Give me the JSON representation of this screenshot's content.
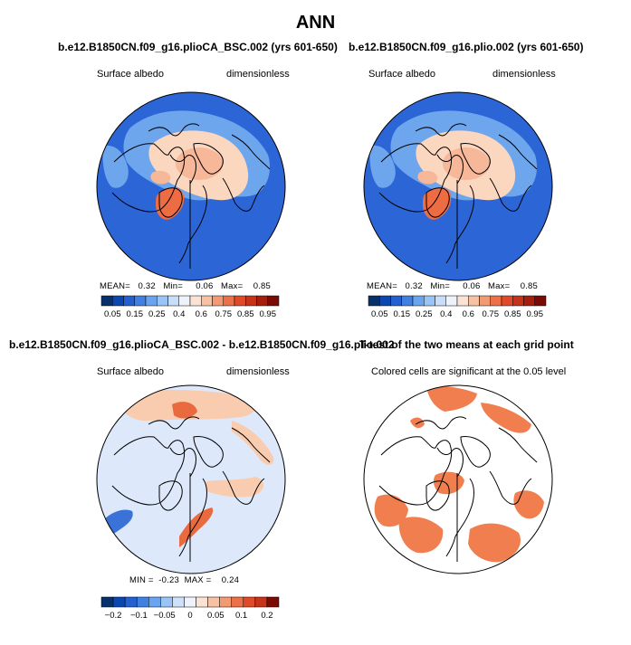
{
  "figure": {
    "title": "ANN"
  },
  "chart_data": [
    {
      "type": "heatmap",
      "projection": "north-polar-stereographic",
      "title": "b.e12.B1850CN.f09_g16.plioCA_BSC.002 (yrs 601-650)",
      "variable": "Surface albedo",
      "units": "dimensionless",
      "stats": {
        "mean_label": "MEAN=",
        "mean": "0.32",
        "min_label": "Min=",
        "min": "0.06",
        "max_label": "Max=",
        "max": "0.85"
      },
      "colorbar": {
        "ticks": [
          "0.05",
          "0.15",
          "0.25",
          "0.4",
          "0.6",
          "0.75",
          "0.85",
          "0.95"
        ],
        "colors": [
          "#08306b",
          "#0b47b0",
          "#2460d0",
          "#3f80e0",
          "#6aa4ee",
          "#9ac4f6",
          "#c8def8",
          "#eef2fa",
          "#fbe3d3",
          "#f7c1a4",
          "#f29a72",
          "#ec7048",
          "#e04a28",
          "#c73318",
          "#a51e0e",
          "#7a0a04"
        ]
      },
      "colors": {
        "ocean_high": "#fbd7c0",
        "ice_core": "#f7b799",
        "greenland": "#ee6c44",
        "land_low": "#2c66d6",
        "land_mid": "#6ea6ee"
      }
    },
    {
      "type": "heatmap",
      "projection": "north-polar-stereographic",
      "title": "b.e12.B1850CN.f09_g16.plio.002 (yrs 601-650)",
      "variable": "Surface albedo",
      "units": "dimensionless",
      "stats": {
        "mean_label": "MEAN=",
        "mean": "0.32",
        "min_label": "Min=",
        "min": "0.06",
        "max_label": "Max=",
        "max": "0.85"
      },
      "colorbar": {
        "ticks": [
          "0.05",
          "0.15",
          "0.25",
          "0.4",
          "0.6",
          "0.75",
          "0.85",
          "0.95"
        ],
        "colors": [
          "#08306b",
          "#0b47b0",
          "#2460d0",
          "#3f80e0",
          "#6aa4ee",
          "#9ac4f6",
          "#c8def8",
          "#eef2fa",
          "#fbe3d3",
          "#f7c1a4",
          "#f29a72",
          "#ec7048",
          "#e04a28",
          "#c73318",
          "#a51e0e",
          "#7a0a04"
        ]
      },
      "colors": {
        "ocean_high": "#fbd7c0",
        "ice_core": "#f7b799",
        "greenland": "#ee6c44",
        "land_low": "#2c66d6",
        "land_mid": "#6ea6ee"
      }
    },
    {
      "type": "heatmap",
      "projection": "north-polar-stereographic",
      "title": "b.e12.B1850CN.f09_g16.plioCA_BSC.002 - b.e12.B1850CN.f09_g16.plio.002",
      "variable": "Surface albedo",
      "units": "dimensionless",
      "stats": {
        "min_label": "MIN =",
        "min": "-0.23",
        "max_label": "MAX =",
        "max": "0.24"
      },
      "colorbar": {
        "ticks": [
          "−0.2",
          "−0.1",
          "−0.05",
          "0",
          "0.05",
          "0.1",
          "0.2"
        ],
        "colors": [
          "#08306b",
          "#0b47b0",
          "#2460d0",
          "#3f80e0",
          "#6aa4ee",
          "#9ac4f6",
          "#cfe1f8",
          "#eef3fb",
          "#fbe3d3",
          "#f7c1a4",
          "#f29a72",
          "#ec7048",
          "#e04a28",
          "#c73318",
          "#7a0a04"
        ]
      },
      "colors": {
        "background": "#dde9fa",
        "positive": "#f9ccb0",
        "strong_positive": "#ea6a40",
        "negative": "#3a72d8"
      }
    },
    {
      "type": "heatmap",
      "projection": "north-polar-stereographic",
      "title": "T-test of the two means at each grid point",
      "caption": "Colored cells are significant at the 0.05 level",
      "colors": {
        "significant": "#f07e4f",
        "background": "#ffffff"
      }
    }
  ]
}
